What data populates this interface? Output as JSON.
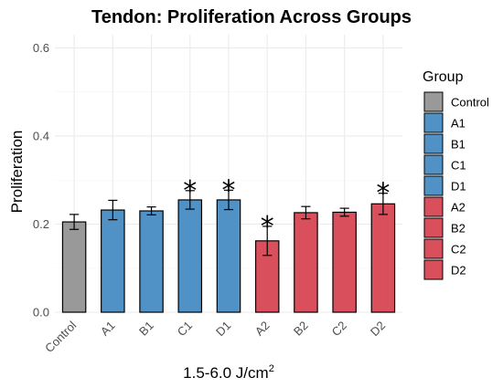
{
  "chart_data": {
    "type": "bar",
    "title": "Tendon: Proliferation Across Groups",
    "xlabel": "1.5-6.0 J/cm",
    "xlabel_superscript": "2",
    "ylabel": "Proliferation",
    "ylim": [
      0,
      0.63
    ],
    "yticks": [
      0.0,
      0.2,
      0.4,
      0.6
    ],
    "ytick_labels": [
      "0.0",
      "0.2",
      "0.4",
      "0.6"
    ],
    "grid": true,
    "legend_title": "Group",
    "legend_position": "right",
    "categories": [
      "Control",
      "A1",
      "B1",
      "C1",
      "D1",
      "A2",
      "B2",
      "C2",
      "D2"
    ],
    "values": [
      0.205,
      0.232,
      0.23,
      0.255,
      0.255,
      0.162,
      0.226,
      0.227,
      0.246
    ],
    "errors": [
      0.017,
      0.022,
      0.009,
      0.021,
      0.022,
      0.033,
      0.014,
      0.009,
      0.024
    ],
    "significant": [
      false,
      false,
      false,
      true,
      true,
      true,
      false,
      false,
      true
    ],
    "significance_marker": "*",
    "colors": [
      "#999999",
      "#5092c5",
      "#5092c5",
      "#5092c5",
      "#5092c5",
      "#d9505c",
      "#d9505c",
      "#d9505c",
      "#d9505c"
    ]
  }
}
